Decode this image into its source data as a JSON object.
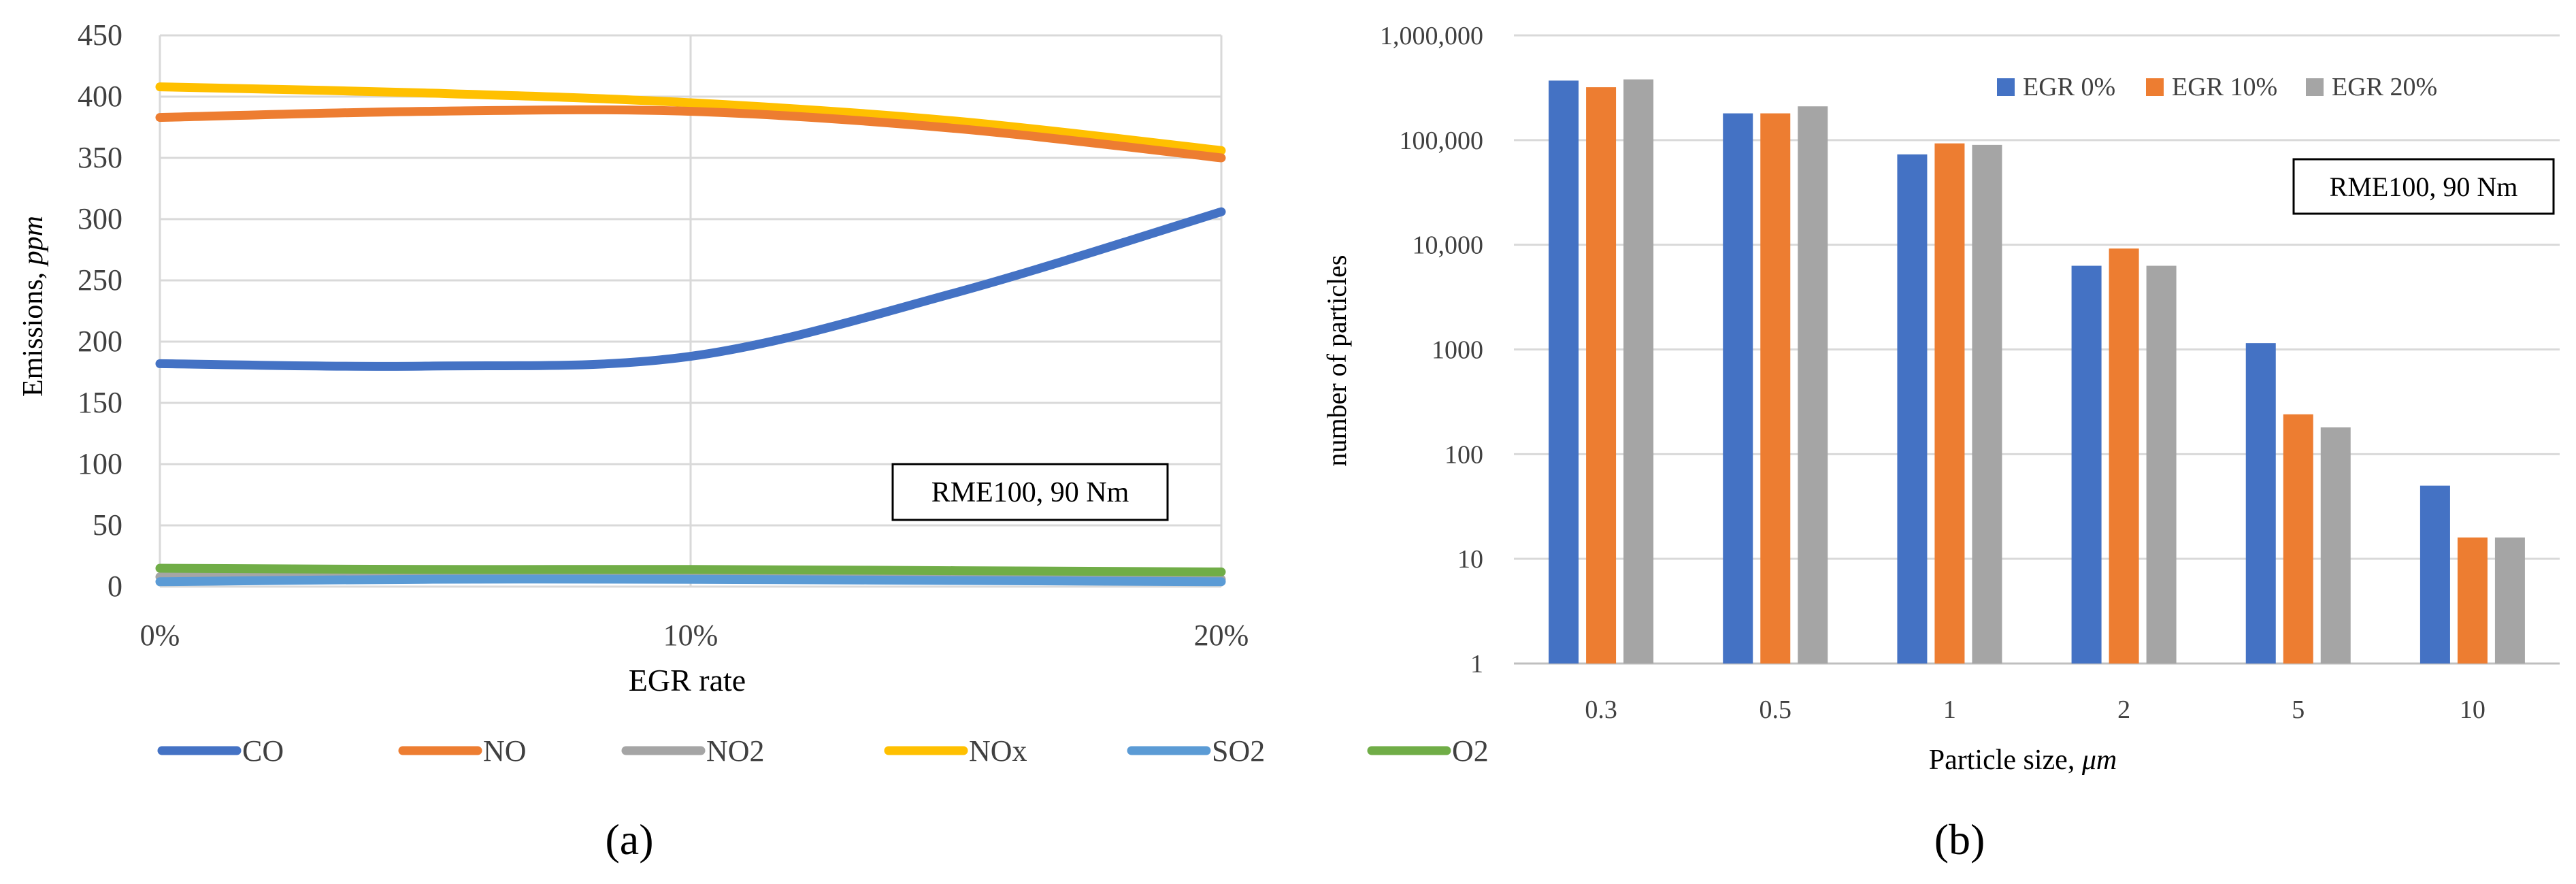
{
  "colors": {
    "co": "#4472C4",
    "no": "#ED7D31",
    "no2": "#A5A5A5",
    "nox": "#FFC000",
    "so2": "#5B9BD5",
    "o2": "#70AD47",
    "grid": "#D9D9D9",
    "axis": "#BFBFBF"
  },
  "panels": {
    "a": "(a)",
    "b": "(b)"
  },
  "chart_data": [
    {
      "type": "line",
      "panel": "(a)",
      "title": "",
      "xlabel": "EGR rate",
      "ylabel": "Emissions, ppm",
      "ylabel_plain": "Emissions, ",
      "ylabel_unit": "ppm",
      "x": [
        0,
        5,
        10,
        15,
        20
      ],
      "x_tick_labels": [
        "0%",
        "10%",
        "20%"
      ],
      "x_tick_values": [
        0,
        10,
        20
      ],
      "ylim": [
        0,
        450
      ],
      "y_ticks": [
        0,
        50,
        100,
        150,
        200,
        250,
        300,
        350,
        400,
        450
      ],
      "grid": true,
      "annotation": "RME100, 90 Nm",
      "legend_position": "bottom",
      "series": [
        {
          "name": "CO",
          "color": "#4472C4",
          "values": [
            182,
            180,
            188,
            240,
            306
          ]
        },
        {
          "name": "NO",
          "color": "#ED7D31",
          "values": [
            383,
            388,
            388,
            374,
            350
          ]
        },
        {
          "name": "NO2",
          "color": "#A5A5A5",
          "values": [
            8,
            8,
            8,
            8,
            6
          ]
        },
        {
          "name": "NOx",
          "color": "#FFC000",
          "values": [
            408,
            403,
            395,
            380,
            356
          ]
        },
        {
          "name": "SO2",
          "color": "#5B9BD5",
          "values": [
            4,
            6,
            6,
            5,
            4
          ]
        },
        {
          "name": "O2",
          "color": "#70AD47",
          "values": [
            15,
            14,
            14,
            13,
            12
          ]
        }
      ]
    },
    {
      "type": "bar",
      "panel": "(b)",
      "title": "",
      "xlabel": "Particle size, μm",
      "xlabel_plain": "Particle size, ",
      "xlabel_unit": "μm",
      "ylabel": "number of particles",
      "y_scale": "log",
      "ylim": [
        1,
        1000000
      ],
      "y_tick_values": [
        1,
        10,
        100,
        1000,
        10000,
        100000,
        1000000
      ],
      "y_tick_labels": [
        "1",
        "10",
        "100",
        "1000",
        "10,000",
        "100,000",
        "1,000,000"
      ],
      "categories": [
        "0.3",
        "0.5",
        "1",
        "2",
        "5",
        "10"
      ],
      "grid": true,
      "annotation": "RME100, 90 Nm",
      "legend_position": "top-right",
      "series": [
        {
          "name": "EGR 0%",
          "color": "#4472C4",
          "values": [
            370000,
            180000,
            73000,
            6300,
            1150,
            50
          ]
        },
        {
          "name": "EGR 10%",
          "color": "#ED7D31",
          "values": [
            320000,
            180000,
            93000,
            9200,
            240,
            16
          ]
        },
        {
          "name": "EGR 20%",
          "color": "#A5A5A5",
          "values": [
            380000,
            210000,
            90000,
            6300,
            180,
            16
          ]
        }
      ]
    }
  ]
}
